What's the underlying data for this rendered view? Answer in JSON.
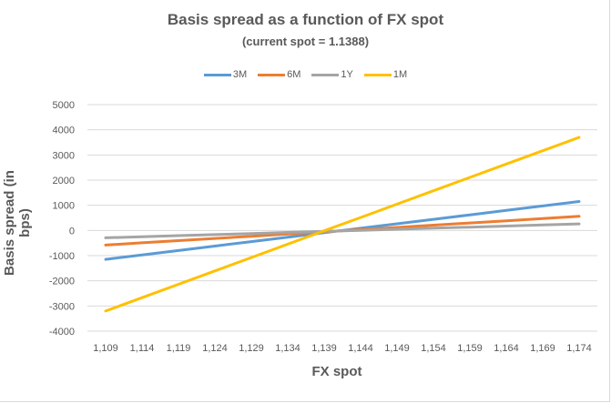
{
  "chart_data": {
    "type": "line",
    "title": "Basis spread as a function of FX spot",
    "subtitle": "(current spot = 1.1388)",
    "xlabel": "FX spot",
    "ylabel": "Basis spread (in bps)",
    "categories": [
      "1,109",
      "1,114",
      "1,119",
      "1,124",
      "1,129",
      "1,134",
      "1,139",
      "1,144",
      "1,149",
      "1,154",
      "1,159",
      "1,164",
      "1,169",
      "1,174"
    ],
    "yticks": [
      5000,
      4000,
      3000,
      2000,
      1000,
      0,
      -1000,
      -2000,
      -3000,
      -4000
    ],
    "ylim": [
      -4000,
      5000
    ],
    "grid": true,
    "legend_position": "top",
    "series": [
      {
        "name": "3M",
        "color": "#5b9bd5",
        "values": [
          -1150,
          -973,
          -796,
          -619,
          -442,
          -265,
          -88,
          89,
          266,
          443,
          620,
          797,
          974,
          1150
        ]
      },
      {
        "name": "6M",
        "color": "#ed7d31",
        "values": [
          -580,
          -492,
          -404,
          -317,
          -229,
          -141,
          -53,
          35,
          122,
          210,
          298,
          386,
          473,
          560
        ]
      },
      {
        "name": "1Y",
        "color": "#a5a5a5",
        "values": [
          -290,
          -248,
          -206,
          -164,
          -121,
          -79,
          -37,
          5,
          48,
          90,
          132,
          174,
          217,
          260
        ]
      },
      {
        "name": "1M",
        "color": "#ffc000",
        "values": [
          -3200,
          -2669,
          -2138,
          -1608,
          -1077,
          -546,
          -15,
          515,
          1046,
          1577,
          2108,
          2638,
          3169,
          3700
        ]
      }
    ]
  }
}
